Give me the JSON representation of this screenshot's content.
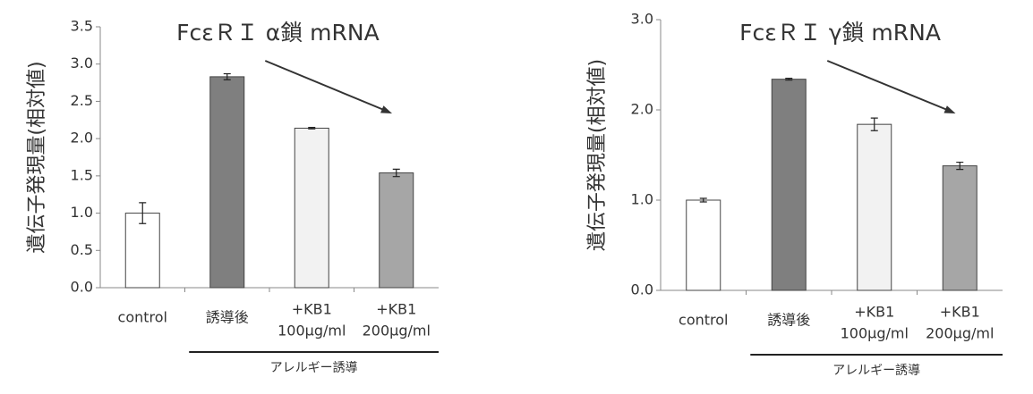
{
  "chart_data": [
    {
      "type": "bar",
      "title": "FcεＲＩ α鎖 mRNA",
      "y_label": "遺伝子発現量(相対値)",
      "categories": [
        "control",
        "誘導後",
        [
          "+KB1",
          "100μg/ml"
        ],
        [
          "+KB1",
          "200μg/ml"
        ]
      ],
      "group_label": "アレルギー誘導",
      "values": [
        1.0,
        2.83,
        2.14,
        1.54
      ],
      "errors": [
        0.14,
        0.04,
        0.01,
        0.05
      ],
      "colors": [
        "#ffffff",
        "#7f7f7f",
        "#f2f2f2",
        "#a6a6a6"
      ],
      "ylim": [
        0,
        3.5
      ],
      "yticks": [
        {
          "value": 0,
          "label": "0.0"
        },
        0.5,
        {
          "value": 1,
          "label": "1.0"
        },
        1.5,
        {
          "value": 2,
          "label": "2.0"
        },
        2.5,
        {
          "value": 3,
          "label": "3.0"
        },
        3.5
      ]
    },
    {
      "type": "bar",
      "title": "FcεＲＩ γ鎖 mRNA",
      "y_label": "遺伝子発現量(相対値)",
      "categories": [
        "control",
        "誘導後",
        [
          "+KB1",
          "100μg/ml"
        ],
        [
          "+KB1",
          "200μg/ml"
        ]
      ],
      "group_label": "アレルギー誘導",
      "values": [
        1.0,
        2.34,
        1.84,
        1.38
      ],
      "errors": [
        0.02,
        0.01,
        0.07,
        0.04
      ],
      "colors": [
        "#ffffff",
        "#7f7f7f",
        "#f2f2f2",
        "#a6a6a6"
      ],
      "ylim": [
        0,
        3
      ],
      "yticks": [
        {
          "value": 0,
          "label": "0.0"
        },
        {
          "value": 1,
          "label": "1.0"
        },
        {
          "value": 2,
          "label": "2.0"
        },
        {
          "value": 3,
          "label": "3.0"
        }
      ]
    }
  ]
}
